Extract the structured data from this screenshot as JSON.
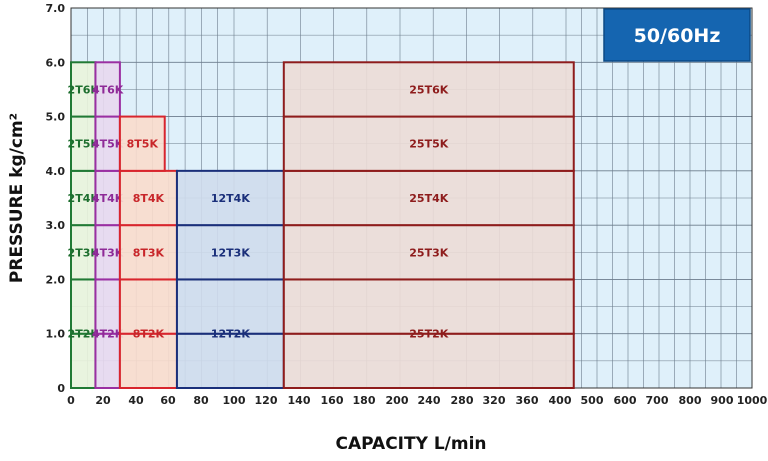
{
  "chart_data": {
    "type": "bar",
    "badge": "50/60Hz",
    "xlabel": "CAPACITY L/min",
    "ylabel": "PRESSURE kg/cm²",
    "xticks": [
      "0",
      "20",
      "40",
      "60",
      "80",
      "100",
      "120",
      "140",
      "160",
      "180",
      "200",
      "240",
      "280",
      "320",
      "360",
      "400",
      "500",
      "600",
      "700",
      "800",
      "900",
      "1000"
    ],
    "yticks": [
      "0",
      "1.0",
      "2.0",
      "3.0",
      "4.0",
      "5.0",
      "6.0",
      "7.0"
    ],
    "ylim": [
      0,
      7
    ],
    "grid": true,
    "colors": {
      "background": "#dff0fa",
      "grid": "#6c7c8c",
      "badge": "#1565b0"
    },
    "models": [
      {
        "name": "2T",
        "x_range": [
          0,
          30
        ],
        "fill": "#eaf4dc",
        "stroke": "#217a35",
        "text": "#1d6e2e",
        "cells": [
          {
            "label": "2T2K",
            "max": 2
          },
          {
            "label": "2T3K",
            "max": 3
          },
          {
            "label": "2T4K",
            "max": 4
          },
          {
            "label": "2T5K",
            "max": 5
          },
          {
            "label": "2T6K",
            "max": 6
          }
        ]
      },
      {
        "name": "4T",
        "x_range": [
          30,
          60
        ],
        "fill": "#e8d8ee",
        "stroke": "#9a2fa2",
        "text": "#8e2a97",
        "cells": [
          {
            "label": "4T2K",
            "max": 2
          },
          {
            "label": "4T3K",
            "max": 3
          },
          {
            "label": "4T4K",
            "max": 4
          },
          {
            "label": "4T5K",
            "max": 5
          },
          {
            "label": "4T6K",
            "max": 6
          }
        ]
      },
      {
        "name": "8T",
        "x_range": [
          60,
          130
        ],
        "fill": "#f9dccc",
        "stroke": "#d8252d",
        "text": "#c8262a",
        "cells": [
          {
            "label": "8T2K",
            "max": 2
          },
          {
            "label": "8T3K",
            "max": 3
          },
          {
            "label": "8T4K",
            "max": 4
          },
          {
            "label": "8T5K",
            "max": 5,
            "x_max": 115
          }
        ]
      },
      {
        "name": "12T",
        "x_range": [
          130,
          230
        ],
        "fill": "#cfdcec",
        "stroke": "#1a2f7a",
        "text": "#1a2f7a",
        "cells": [
          {
            "label": "12T2K",
            "max": 2
          },
          {
            "label": "12T3K",
            "max": 3
          },
          {
            "label": "12T4K",
            "max": 4
          }
        ]
      },
      {
        "name": "25T",
        "x_range": [
          230,
          425
        ],
        "fill": "#ecdcd6",
        "stroke": "#8e1c1c",
        "text": "#8e1c1c",
        "cells": [
          {
            "label": "25T2K",
            "max": 2
          },
          {
            "label": "25T3K",
            "max": 3
          },
          {
            "label": "25T4K",
            "max": 4
          },
          {
            "label": "25T5K",
            "max": 5
          },
          {
            "label": "25T6K",
            "max": 6
          }
        ]
      }
    ]
  }
}
